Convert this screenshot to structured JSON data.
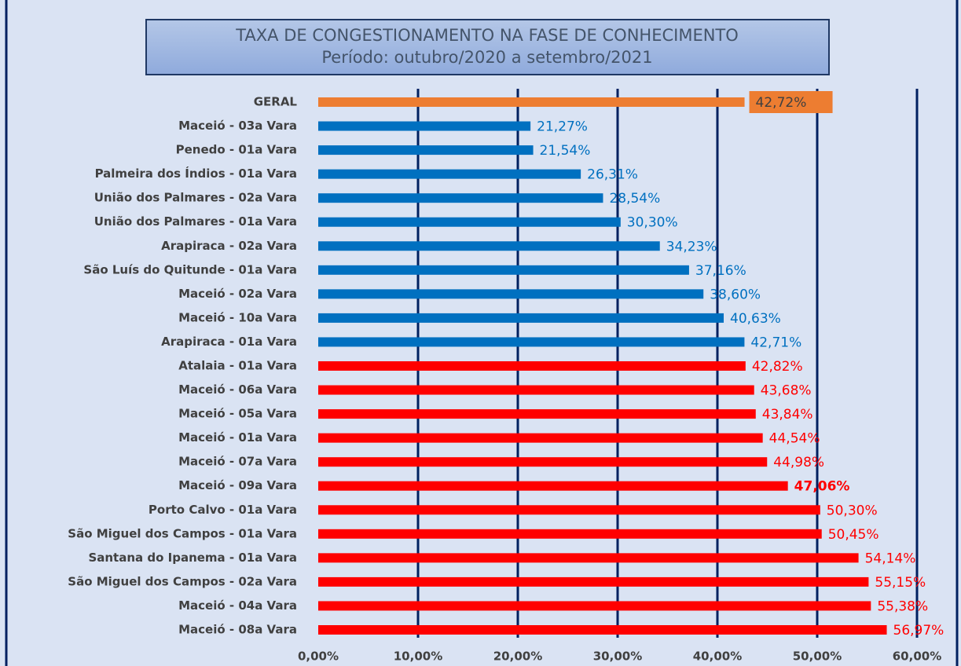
{
  "chart_data": {
    "type": "barh",
    "title": "TAXA DE CONGESTIONAMENTO NA FASE DE CONHECIMENTO",
    "subtitle": "Período: outubro/2020 a setembro/2021",
    "categories": [
      "GERAL",
      "Maceió - 03a Vara",
      "Penedo - 01a Vara",
      "Palmeira dos Índios - 01a Vara",
      "União dos Palmares - 02a Vara",
      "União dos Palmares - 01a Vara",
      "Arapiraca - 02a Vara",
      "São Luís do Quitunde - 01a Vara",
      "Maceió - 02a Vara",
      "Maceió - 10a Vara",
      "Arapiraca - 01a Vara",
      "Atalaia - 01a Vara",
      "Maceió - 06a Vara",
      "Maceió - 05a Vara",
      "Maceió - 01a Vara",
      "Maceió - 07a Vara",
      "Maceió - 09a Vara",
      "Porto Calvo - 01a Vara",
      "São Miguel dos Campos - 01a Vara",
      "Santana do Ipanema - 01a Vara",
      "São Miguel dos Campos - 02a Vara",
      "Maceió - 04a Vara",
      "Maceió - 08a Vara"
    ],
    "values": [
      42.72,
      21.27,
      21.54,
      26.31,
      28.54,
      30.3,
      34.23,
      37.16,
      38.6,
      40.63,
      42.71,
      42.82,
      43.68,
      43.84,
      44.54,
      44.98,
      47.06,
      50.3,
      50.45,
      54.14,
      55.15,
      55.38,
      56.97
    ],
    "value_labels": [
      "42,72%",
      "21,27%",
      "21,54%",
      "26,31%",
      "28,54%",
      "30,30%",
      "34,23%",
      "37,16%",
      "38,60%",
      "40,63%",
      "42,71%",
      "42,82%",
      "43,68%",
      "43,84%",
      "44,54%",
      "44,98%",
      "47,06%",
      "50,30%",
      "50,45%",
      "54,14%",
      "55,15%",
      "55,38%",
      "56,97%"
    ],
    "colors": [
      "#ed7d31",
      "#0070c0",
      "#0070c0",
      "#0070c0",
      "#0070c0",
      "#0070c0",
      "#0070c0",
      "#0070c0",
      "#0070c0",
      "#0070c0",
      "#0070c0",
      "#ff0000",
      "#ff0000",
      "#ff0000",
      "#ff0000",
      "#ff0000",
      "#ff0000",
      "#ff0000",
      "#ff0000",
      "#ff0000",
      "#ff0000",
      "#ff0000",
      "#ff0000"
    ],
    "label_box_index": 0,
    "bold_label_index": 16,
    "xlim": [
      0,
      60
    ],
    "xticks": [
      {
        "value": 0,
        "label": "0,00%"
      },
      {
        "value": 10,
        "label": "10,00%"
      },
      {
        "value": 20,
        "label": "20,00%"
      },
      {
        "value": 30,
        "label": "30,00%"
      },
      {
        "value": 40,
        "label": "40,00%"
      },
      {
        "value": 50,
        "label": "50,00%"
      },
      {
        "value": 60,
        "label": "60,00%"
      }
    ],
    "grid": true
  }
}
